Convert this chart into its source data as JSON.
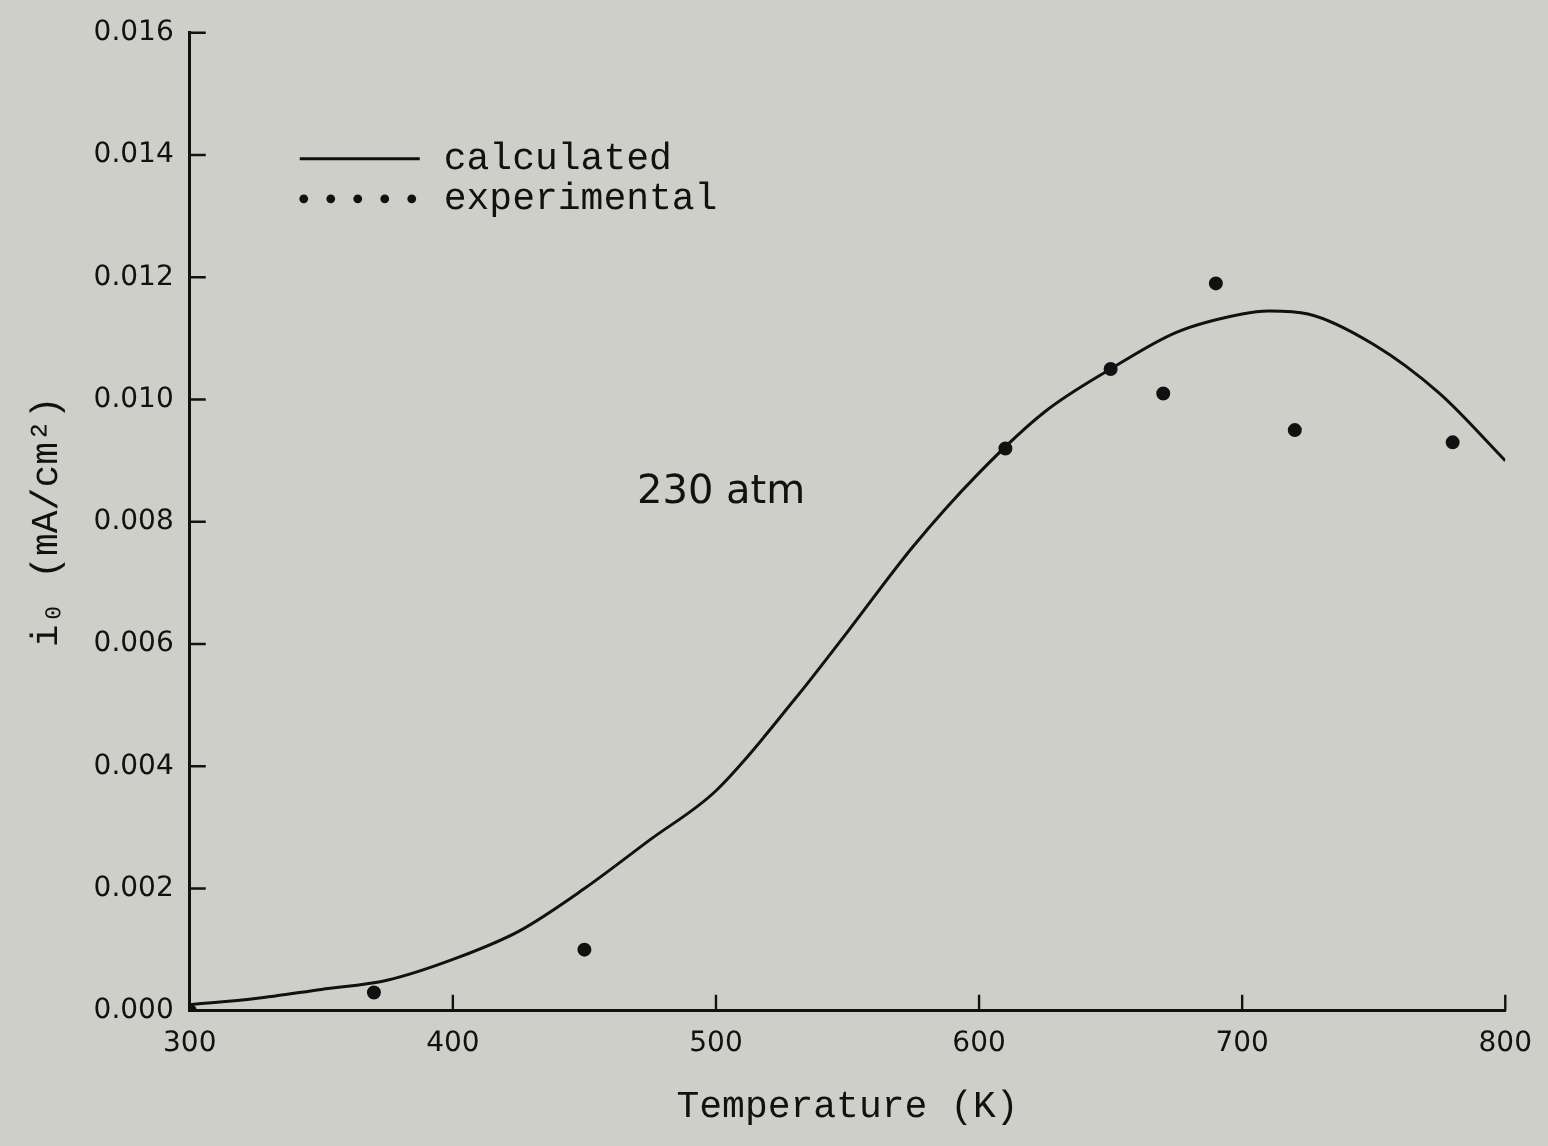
{
  "chart_data": {
    "type": "line",
    "xlabel": "Temperature (K)",
    "ylabel": "i₀ (mA/cm²)",
    "xlim": [
      300,
      800
    ],
    "xticks": [
      300,
      400,
      500,
      600,
      700,
      800
    ],
    "ylim": [
      0,
      0.016
    ],
    "yticks": [
      {
        "value": 0,
        "label": "0.000"
      },
      {
        "value": 0.002,
        "label": "0.002"
      },
      {
        "value": 0.004,
        "label": "0.004"
      },
      {
        "value": 0.006,
        "label": "0.006"
      },
      {
        "value": 0.008,
        "label": "0.008"
      },
      {
        "value": 0.01,
        "label": "0.010"
      },
      {
        "value": 0.012,
        "label": "0.012"
      },
      {
        "value": 0.014,
        "label": "0.014"
      },
      {
        "value": 0.016,
        "label": "0.016"
      }
    ],
    "grid": false,
    "legend": "top left",
    "annotations": [
      "230 atm"
    ],
    "series": [
      {
        "name": "calculated",
        "type": "line",
        "color": "#111111",
        "marker": "none",
        "line_style": "solid",
        "x": [
          300,
          325,
          350,
          375,
          400,
          425,
          450,
          475,
          500,
          530,
          550,
          575,
          600,
          625,
          650,
          675,
          700,
          710,
          725,
          750,
          775,
          800
        ],
        "values": [
          0.0001,
          0.0002,
          0.00035,
          0.0005,
          0.00084,
          0.0013,
          0.002,
          0.0028,
          0.0036,
          0.0051,
          0.0062,
          0.0076,
          0.0088,
          0.0098,
          0.0105,
          0.0111,
          0.0114,
          0.01145,
          0.0114,
          0.0109,
          0.0101,
          0.009
        ]
      },
      {
        "name": "experimental",
        "type": "scatter",
        "color": "#111111",
        "marker": "circle",
        "x": [
          300,
          370,
          450,
          610,
          650,
          670,
          690,
          720,
          780
        ],
        "values": [
          0,
          0.0003,
          0.001,
          0.0092,
          0.0105,
          0.0101,
          0.0119,
          0.0095,
          0.0093
        ]
      }
    ]
  }
}
